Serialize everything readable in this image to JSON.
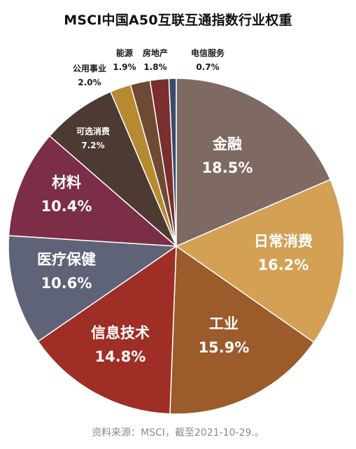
{
  "chart_data": {
    "type": "pie",
    "title": "MSCI中国A50互联互通指数行业权重",
    "slices": [
      {
        "name": "金融",
        "value": 18.5,
        "label": "18.5%",
        "color": "#7e6a63"
      },
      {
        "name": "日常消费",
        "value": 16.2,
        "label": "16.2%",
        "color": "#d4a054"
      },
      {
        "name": "工业",
        "value": 15.9,
        "label": "15.9%",
        "color": "#9b5b2a"
      },
      {
        "name": "信息技术",
        "value": 14.8,
        "label": "14.8%",
        "color": "#9e2e26"
      },
      {
        "name": "医疗保健",
        "value": 10.6,
        "label": "10.6%",
        "color": "#5e6378"
      },
      {
        "name": "材料",
        "value": 10.4,
        "label": "10.4%",
        "color": "#7c2d48"
      },
      {
        "name": "可选消费",
        "value": 7.2,
        "label": "7.2%",
        "color": "#4d3a33"
      },
      {
        "name": "公用事业",
        "value": 2.0,
        "label": "2.0%",
        "color": "#b58a30"
      },
      {
        "name": "能源",
        "value": 1.9,
        "label": "1.9%",
        "color": "#6e4a32"
      },
      {
        "name": "房地产",
        "value": 1.8,
        "label": "1.8%",
        "color": "#7a2e2e"
      },
      {
        "name": "电信服务",
        "value": 0.7,
        "label": "0.7%",
        "color": "#3c4a6a"
      }
    ],
    "source": "资料来源：MSCI，截至2021-10-29.。"
  }
}
